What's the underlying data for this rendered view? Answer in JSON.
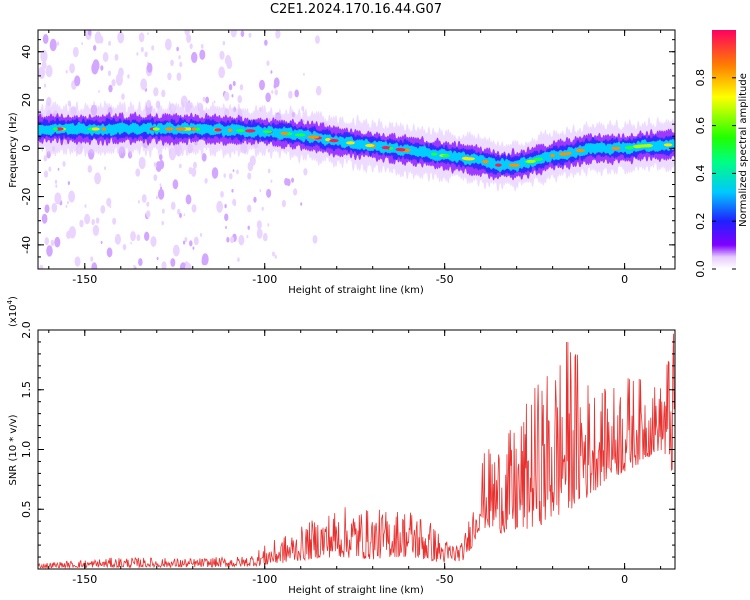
{
  "title": "C2E1.2024.170.16.44.G07",
  "chart_data": [
    {
      "type": "heatmap",
      "xlabel": "Height of straight line (km)",
      "ylabel": "Frequency (Hz)",
      "xlim": [
        -163,
        14
      ],
      "ylim": [
        -50,
        49
      ],
      "xticks": [
        -150,
        -100,
        -50,
        0
      ],
      "yticks": [
        -40,
        -20,
        0,
        20,
        40
      ],
      "grid": false,
      "ridge": {
        "x": [
          -163,
          -150,
          -140,
          -130,
          -120,
          -110,
          -100,
          -90,
          -80,
          -70,
          -60,
          -55,
          -50,
          -45,
          -40,
          -35,
          -30,
          -25,
          -20,
          -15,
          -10,
          0,
          5,
          14
        ],
        "y": [
          8,
          8,
          8,
          8,
          8,
          7.5,
          7,
          5.5,
          3,
          1,
          -1,
          -2,
          -3,
          -4,
          -5,
          -7,
          -7,
          -5,
          -3,
          -2,
          0,
          0,
          1,
          1.5
        ]
      },
      "colorbar": {
        "label": "Normalized spectral amplitude",
        "range": [
          0,
          1
        ],
        "ticks": [
          0.0,
          0.2,
          0.4,
          0.6,
          0.8
        ],
        "tick_labels": [
          "0.0",
          "0.2",
          "0.4",
          "0.6",
          "0.8"
        ]
      }
    },
    {
      "type": "line",
      "xlabel": "Height of straight line (km)",
      "ylabel": "SNR (10 * v/v)",
      "scale_note": "(x10",
      "scale_exp": "4",
      "scale_close": ")",
      "xlim": [
        -163,
        14
      ],
      "ylim": [
        0,
        20000
      ],
      "xticks": [
        -150,
        -100,
        -50,
        0
      ],
      "yticks": [
        5000,
        10000,
        15000,
        20000
      ],
      "ytick_labels": [
        "0.5",
        "1.0",
        "1.5",
        "2.0"
      ],
      "color": "#e8312f",
      "grid": false,
      "envelope": {
        "x": [
          -163,
          -140,
          -120,
          -105,
          -100,
          -95,
          -90,
          -85,
          -80,
          -75,
          -70,
          -65,
          -60,
          -55,
          -50,
          -45,
          -42,
          -40,
          -35,
          -30,
          -25,
          -20,
          -15,
          -10,
          -5,
          0,
          5,
          10,
          13
        ],
        "low": [
          100,
          150,
          150,
          200,
          300,
          500,
          700,
          900,
          1000,
          900,
          800,
          1000,
          1000,
          700,
          500,
          700,
          2000,
          3500,
          3000,
          3000,
          3500,
          4000,
          5000,
          6000,
          7500,
          8000,
          9000,
          10000,
          8000
        ],
        "high": [
          500,
          1000,
          900,
          1100,
          2000,
          2800,
          3500,
          4500,
          5200,
          5300,
          5000,
          5000,
          5300,
          4500,
          2500,
          2200,
          6000,
          9500,
          11000,
          12000,
          15500,
          17500,
          20000,
          16000,
          15000,
          16500,
          16000,
          15500,
          20000
        ]
      }
    }
  ]
}
